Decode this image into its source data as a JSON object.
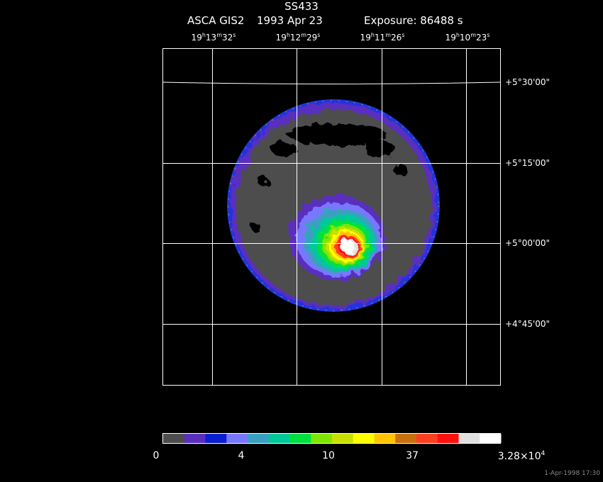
{
  "header": {
    "object": "SS433",
    "instrument": "ASCA GIS2",
    "date": "1993 Apr 23",
    "exposure": "Exposure: 86488 s"
  },
  "ra_ticks": [
    {
      "h": "19",
      "m": "13",
      "s": "32"
    },
    {
      "h": "19",
      "m": "12",
      "s": "29"
    },
    {
      "h": "19",
      "m": "11",
      "s": "26"
    },
    {
      "h": "19",
      "m": "10",
      "s": "23"
    }
  ],
  "dec_ticks": [
    "+5°30'00\"",
    "+5°15'00\"",
    "+5°00'00\"",
    "+4°45'00\""
  ],
  "colorbar": {
    "colors": [
      "#4d4d4d",
      "#5a2fbf",
      "#0a1fd0",
      "#7878ff",
      "#3aa0c0",
      "#00c89a",
      "#00e040",
      "#7ee600",
      "#c8e000",
      "#ffff00",
      "#ffc400",
      "#c87010",
      "#ff4020",
      "#ff1010",
      "#e0e0e0",
      "#ffffff"
    ],
    "labels": [
      {
        "text": "0",
        "exp": ""
      },
      {
        "text": "4",
        "exp": ""
      },
      {
        "text": "10",
        "exp": ""
      },
      {
        "text": "37",
        "exp": ""
      },
      {
        "text": "3.28×10",
        "exp": "4"
      }
    ]
  },
  "timestamp": "1-Apr-1998 17:30"
}
